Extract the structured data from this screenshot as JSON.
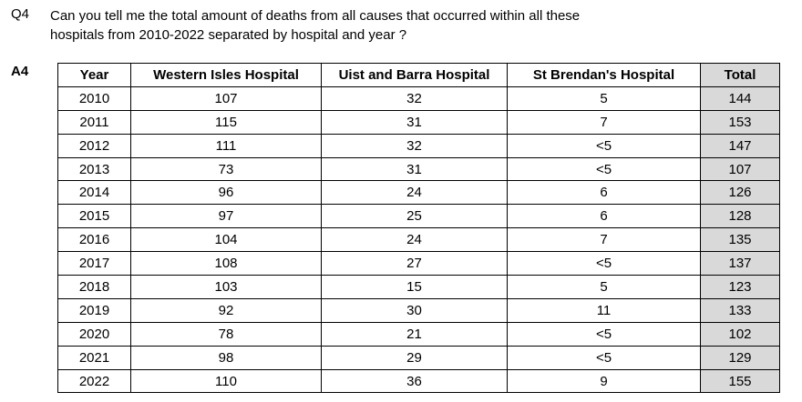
{
  "question": {
    "label": "Q4",
    "text": "Can you tell me the total amount of deaths from all causes that occurred within all these hospitals from 2010-2022 separated by hospital and year ?"
  },
  "answer": {
    "label": "A4"
  },
  "table": {
    "header": [
      "Year",
      "Western Isles Hospital",
      "Uist and Barra Hospital",
      "St Brendan's Hospital",
      "Total"
    ],
    "rows": [
      [
        2010,
        107,
        32,
        5,
        144
      ],
      [
        2011,
        115,
        31,
        7,
        153
      ],
      [
        2012,
        111,
        32,
        "<5",
        147
      ],
      [
        2013,
        73,
        31,
        "<5",
        107
      ],
      [
        2014,
        96,
        24,
        6,
        126
      ],
      [
        2015,
        97,
        25,
        6,
        128
      ],
      [
        2016,
        104,
        24,
        7,
        135
      ],
      [
        2017,
        108,
        27,
        "<5",
        137
      ],
      [
        2018,
        103,
        15,
        5,
        123
      ],
      [
        2019,
        92,
        30,
        11,
        133
      ],
      [
        2020,
        78,
        21,
        "<5",
        102
      ],
      [
        2021,
        98,
        29,
        "<5",
        129
      ],
      [
        2022,
        110,
        36,
        9,
        155
      ]
    ]
  }
}
